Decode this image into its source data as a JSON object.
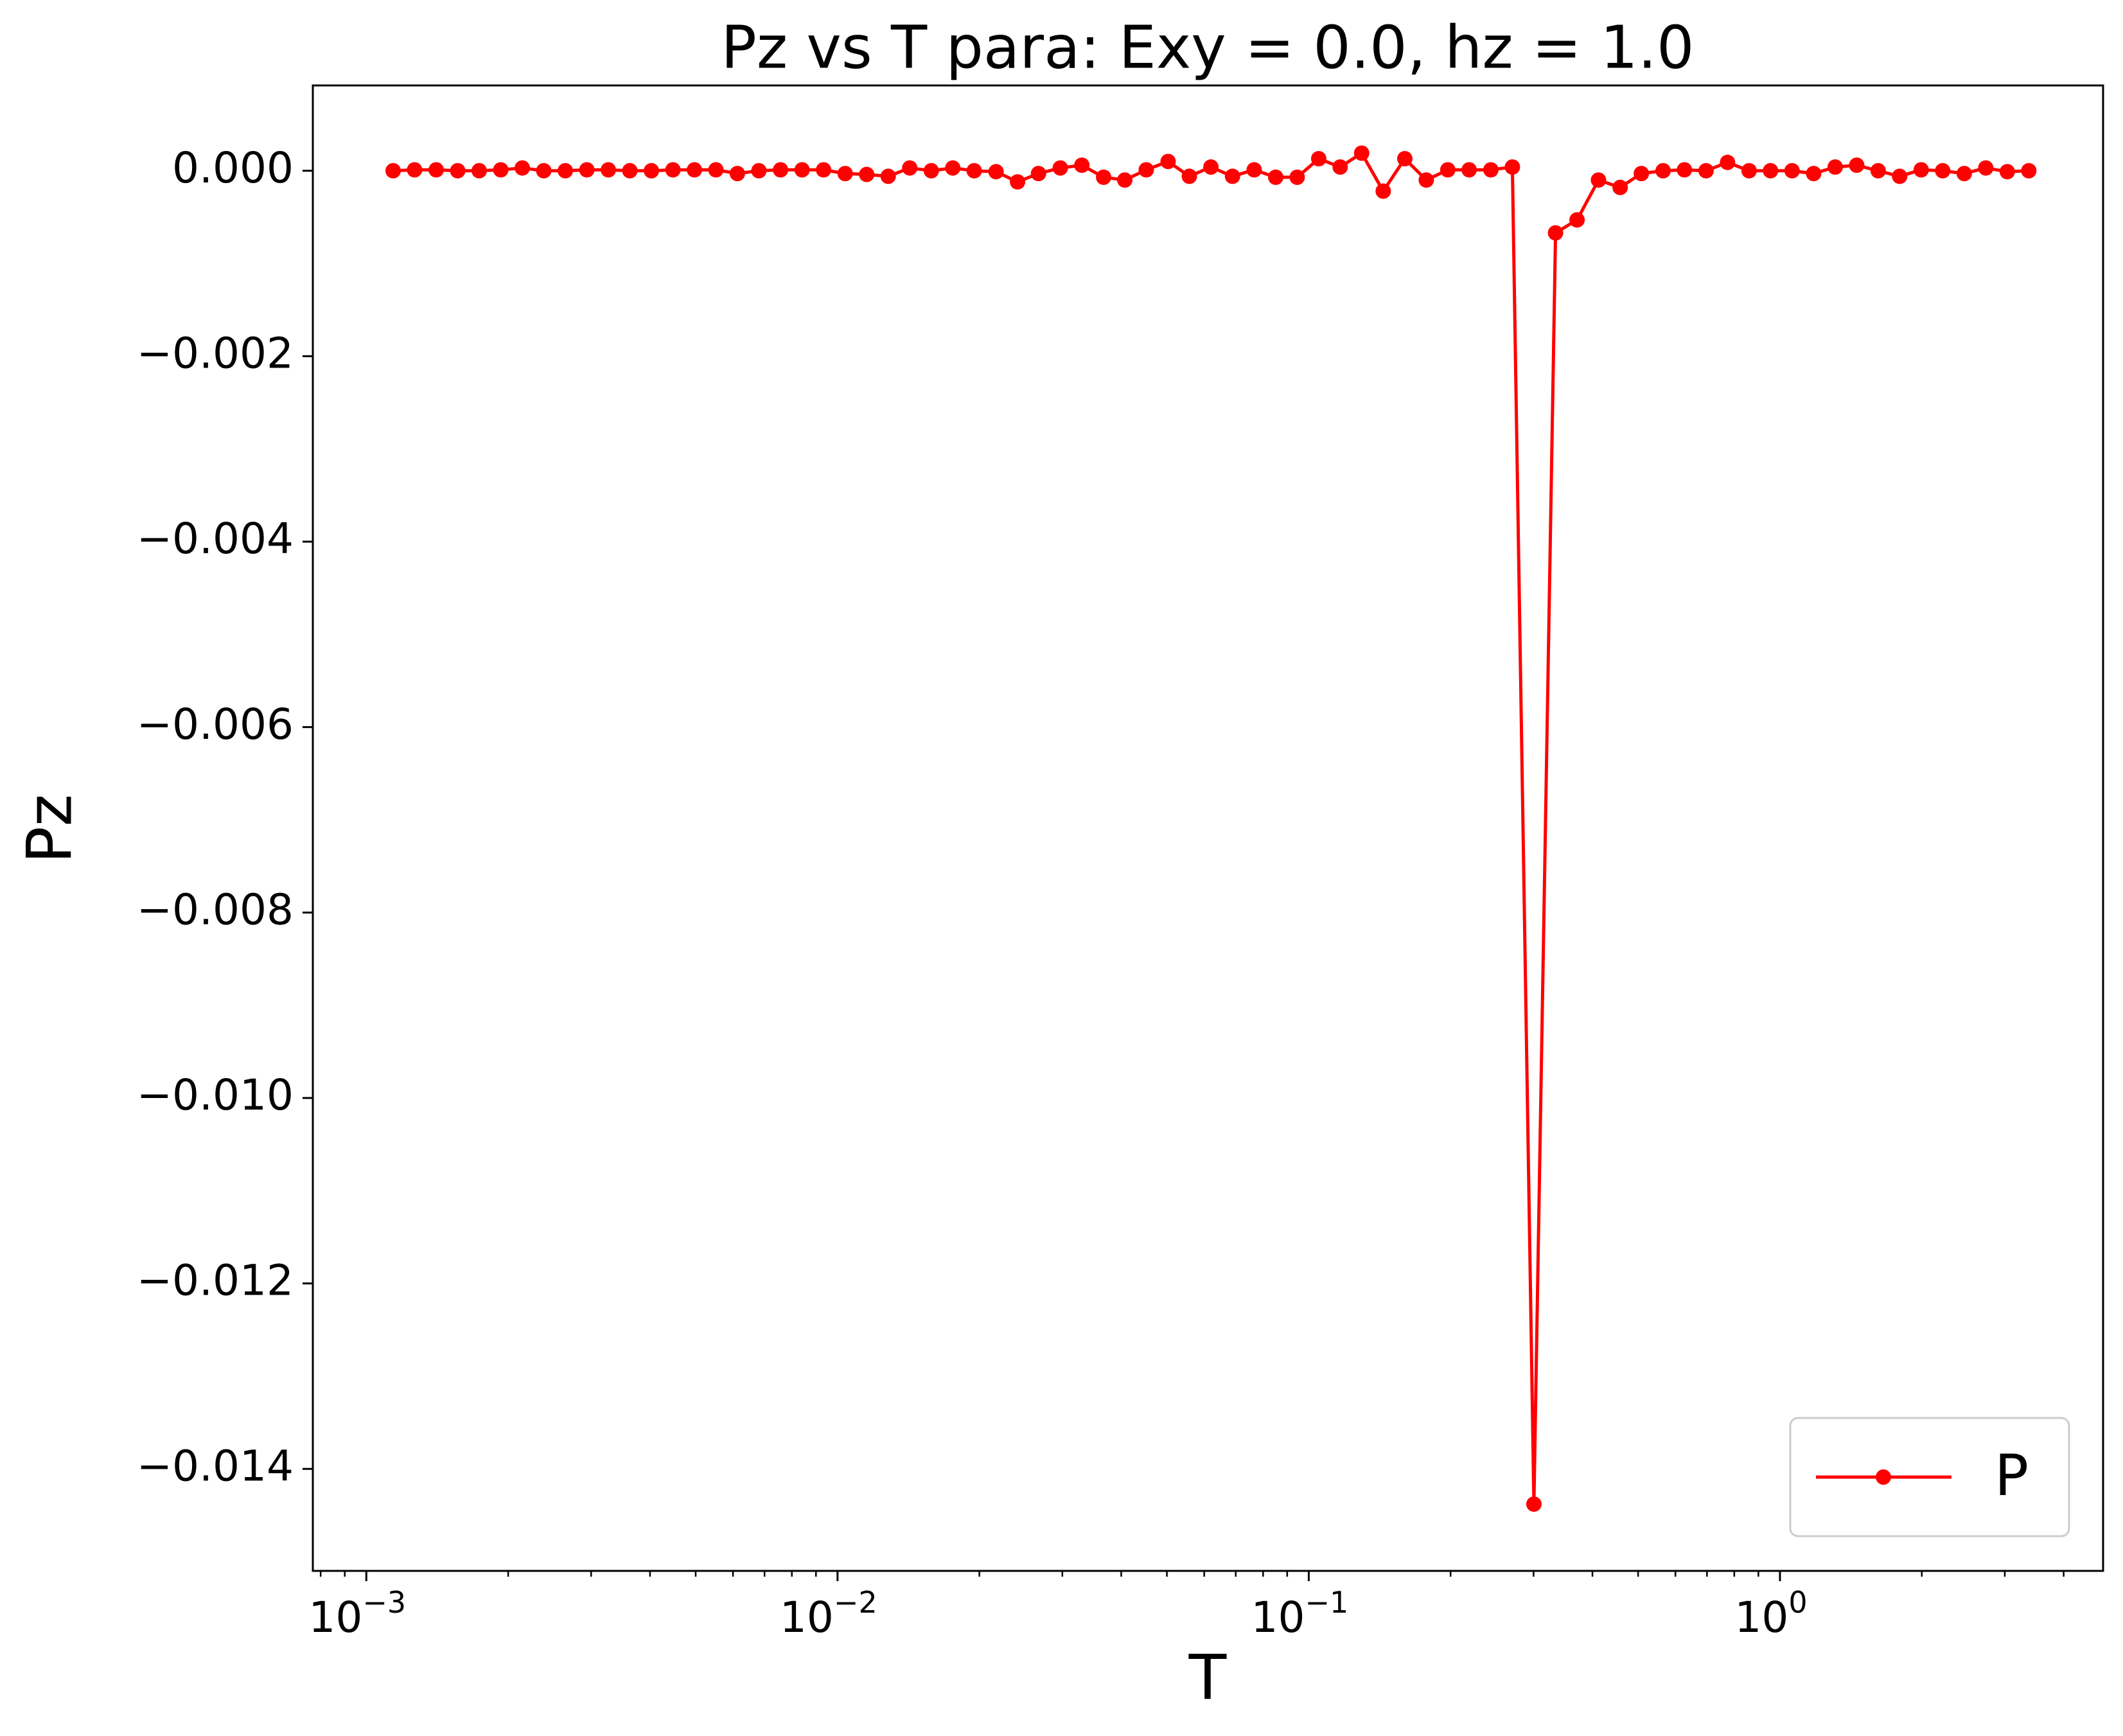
{
  "chart_data": {
    "type": "line",
    "title": "Pz vs T para: Exy = 0.0, hz = 1.0",
    "x_label": "T",
    "y_label": "Pz",
    "x_scale": "log",
    "x": [
      0.00114,
      0.001266,
      0.001407,
      0.001563,
      0.001736,
      0.001929,
      0.002143,
      0.00238,
      0.002644,
      0.002938,
      0.003263,
      0.003625,
      0.004027,
      0.004474,
      0.00497,
      0.00552,
      0.00613,
      0.00681,
      0.00757,
      0.00841,
      0.00934,
      0.01038,
      0.01153,
      0.01281,
      0.01423,
      0.01581,
      0.01756,
      0.0195,
      0.0217,
      0.0241,
      0.0267,
      0.0297,
      0.033,
      0.0367,
      0.0407,
      0.0452,
      0.0503,
      0.0558,
      0.062,
      0.0689,
      0.0766,
      0.0851,
      0.0945,
      0.105,
      0.1166,
      0.1295,
      0.1439,
      0.1599,
      0.1776,
      0.1973,
      0.219,
      0.2435,
      0.2705,
      0.3005,
      0.334,
      0.371,
      0.412,
      0.458,
      0.508,
      0.565,
      0.627,
      0.697,
      0.774,
      0.86,
      0.955,
      1.061,
      1.179,
      1.31,
      1.455,
      1.616,
      1.795,
      1.994,
      2.215,
      2.461,
      2.734,
      3.037,
      3.374
    ],
    "series": [
      {
        "name": "P",
        "color": "#ff0000",
        "marker": "circle",
        "values": [
          0,
          1e-05,
          1e-05,
          0,
          0,
          1e-05,
          3e-05,
          0,
          0,
          1e-05,
          1e-05,
          0,
          0,
          1e-05,
          1e-05,
          1e-05,
          -3e-05,
          0,
          1e-05,
          1e-05,
          1e-05,
          -3e-05,
          -4e-05,
          -6e-05,
          3e-05,
          0,
          3e-05,
          0,
          -1e-05,
          -0.00012,
          -3e-05,
          3e-05,
          6e-05,
          -7e-05,
          -0.0001,
          1e-05,
          0.0001,
          -6e-05,
          4e-05,
          -6e-05,
          1e-05,
          -7e-05,
          -7e-05,
          0.00013,
          4e-05,
          0.00019,
          -0.00022,
          0.00013,
          -0.0001,
          1e-05,
          1e-05,
          1e-05,
          4e-05,
          -0.01438,
          -0.00067,
          -0.00053,
          -0.0001,
          -0.00018,
          -3e-05,
          0,
          1e-05,
          0,
          9e-05,
          0,
          0,
          0,
          -3e-05,
          4e-05,
          6e-05,
          0,
          -6e-05,
          1e-05,
          0,
          -3e-05,
          3e-05,
          -1e-05,
          0
        ]
      }
    ],
    "xlim": [
      0.00077,
      4.85
    ],
    "ylim": [
      -0.0151,
      0.00092
    ],
    "xticks": [
      {
        "value": 0.001,
        "label": "10",
        "exponent": "−3"
      },
      {
        "value": 0.01,
        "label": "10",
        "exponent": "−2"
      },
      {
        "value": 0.1,
        "label": "10",
        "exponent": "−1"
      },
      {
        "value": 1,
        "label": "10",
        "exponent": "0"
      }
    ],
    "xminorticks": [
      0.0008,
      0.0009,
      0.002,
      0.003,
      0.004,
      0.005,
      0.006,
      0.007,
      0.008,
      0.009,
      0.02,
      0.03,
      0.04,
      0.05,
      0.06,
      0.07,
      0.08,
      0.09,
      0.2,
      0.3,
      0.4,
      0.5,
      0.6,
      0.7,
      0.8,
      0.9,
      2,
      3,
      4
    ],
    "yticks": [
      {
        "value": 0,
        "label": "0.000"
      },
      {
        "value": -0.002,
        "label": "−0.002"
      },
      {
        "value": -0.004,
        "label": "−0.004"
      },
      {
        "value": -0.006,
        "label": "−0.006"
      },
      {
        "value": -0.008,
        "label": "−0.008"
      },
      {
        "value": -0.01,
        "label": "−0.010"
      },
      {
        "value": -0.012,
        "label": "−0.012"
      },
      {
        "value": -0.014,
        "label": "−0.014"
      }
    ],
    "grid": false,
    "legend_position": "lower right"
  }
}
